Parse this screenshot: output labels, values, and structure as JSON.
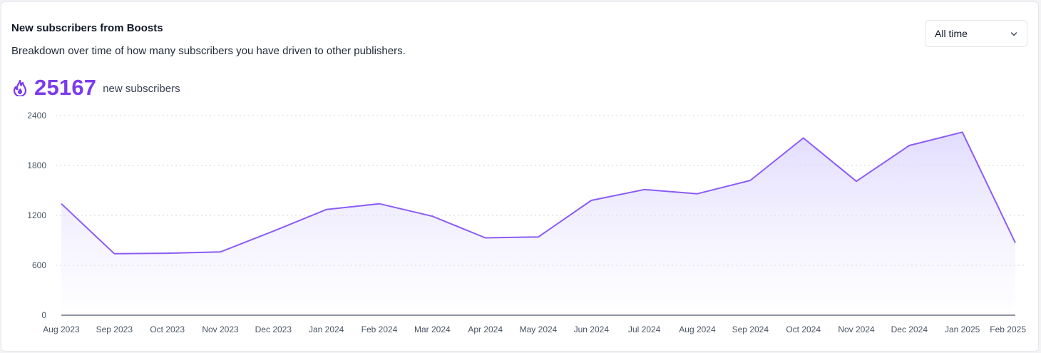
{
  "header": {
    "title": "New subscribers from Boosts",
    "subtitle": "Breakdown over time of how many subscribers you have driven to other publishers."
  },
  "stat": {
    "icon": "fire-icon",
    "value": "25167",
    "label": "new subscribers"
  },
  "range_select": {
    "value": "All time",
    "icon": "chevron-down-icon"
  },
  "colors": {
    "accent": "#7c3aed",
    "line": "#8b5cf6",
    "fill": "#ddd6fe"
  },
  "chart_data": {
    "type": "area",
    "title": "",
    "xlabel": "",
    "ylabel": "",
    "categories": [
      "Aug 2023",
      "Sep 2023",
      "Oct 2023",
      "Nov 2023",
      "Dec 2023",
      "Jan 2024",
      "Feb 2024",
      "Mar 2024",
      "Apr 2024",
      "May 2024",
      "Jun 2024",
      "Jul 2024",
      "Aug 2024",
      "Sep 2024",
      "Oct 2024",
      "Nov 2024",
      "Dec 2024",
      "Jan 2025",
      "Feb 2025"
    ],
    "values": [
      1340,
      740,
      745,
      760,
      1010,
      1270,
      1340,
      1190,
      930,
      940,
      1380,
      1510,
      1460,
      1620,
      2130,
      1610,
      2040,
      2200,
      870
    ],
    "ylim": [
      0,
      2400
    ],
    "yticks": [
      0,
      600,
      1200,
      1800,
      2400
    ],
    "grid": true,
    "legend": "none"
  }
}
